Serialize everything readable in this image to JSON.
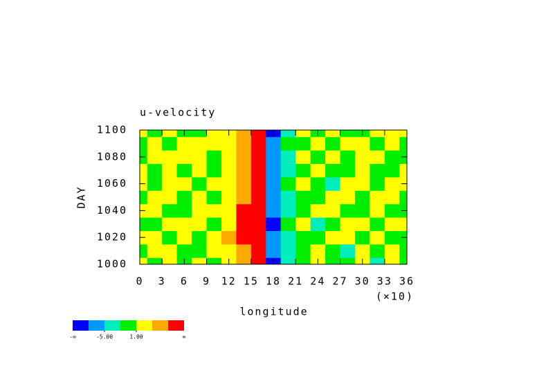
{
  "chart_data": {
    "type": "contour",
    "title": "u-velocity",
    "x_label": "longitude",
    "x_multiplier": "(×10)",
    "y_label": "DAY",
    "x": [
      0,
      2,
      4,
      6,
      8,
      10,
      12,
      14,
      16,
      18,
      20,
      22,
      24,
      26,
      28,
      30,
      32,
      34,
      36
    ],
    "y": [
      1000,
      1010,
      1020,
      1030,
      1040,
      1050,
      1060,
      1070,
      1080,
      1090,
      1100
    ],
    "z": [
      [
        2,
        0,
        3,
        -1,
        1,
        0,
        2,
        5,
        9,
        -9,
        -3,
        -1,
        1,
        -2,
        0,
        2,
        -4,
        1,
        -1
      ],
      [
        -2,
        1,
        2,
        0,
        -1,
        3,
        1,
        6,
        10,
        -8,
        -4,
        0,
        2,
        -1,
        -3,
        1,
        0,
        3,
        -2
      ],
      [
        1,
        3,
        -1,
        2,
        0,
        1,
        4,
        8,
        11,
        -7,
        -3,
        -1,
        0,
        2,
        1,
        -2,
        1,
        -1,
        0
      ],
      [
        0,
        -1,
        2,
        3,
        1,
        -2,
        2,
        7,
        10,
        -9,
        -2,
        1,
        -3,
        0,
        3,
        1,
        -1,
        2,
        1
      ],
      [
        3,
        1,
        0,
        -2,
        2,
        1,
        3,
        8,
        9,
        -8,
        -4,
        -1,
        2,
        1,
        -1,
        0,
        2,
        0,
        -1
      ],
      [
        -1,
        2,
        1,
        0,
        3,
        0,
        2,
        5,
        8,
        -7,
        -3,
        0,
        -2,
        1,
        2,
        -1,
        1,
        3,
        0
      ],
      [
        1,
        0,
        3,
        2,
        -1,
        3,
        1,
        6,
        9,
        -6,
        -2,
        1,
        0,
        -3,
        1,
        2,
        -2,
        1,
        2
      ],
      [
        2,
        -2,
        1,
        0,
        2,
        0,
        3,
        5,
        8,
        -7,
        -4,
        -1,
        1,
        0,
        -1,
        3,
        0,
        -1,
        1
      ],
      [
        0,
        1,
        2,
        3,
        1,
        -1,
        1,
        6,
        9,
        -8,
        -3,
        2,
        -1,
        1,
        0,
        2,
        1,
        0,
        -2
      ],
      [
        -1,
        2,
        0,
        1,
        2,
        1,
        2,
        5,
        10,
        -7,
        -2,
        0,
        1,
        -2,
        3,
        1,
        -1,
        2,
        0
      ],
      [
        1,
        0,
        2,
        -1,
        0,
        2,
        1,
        6,
        9,
        -9,
        -3,
        1,
        0,
        1,
        -1,
        0,
        3,
        1,
        2
      ]
    ],
    "xlim": [
      0,
      36
    ],
    "xticks": [
      0,
      3,
      6,
      9,
      12,
      15,
      18,
      21,
      24,
      27,
      30,
      33,
      36
    ],
    "ylim": [
      1000,
      1100
    ],
    "yticks": [
      1000,
      1020,
      1040,
      1060,
      1080,
      1100
    ],
    "colorbar": {
      "colors": [
        "#0000ff",
        "#0099ff",
        "#00eebb",
        "#00ee00",
        "#ffff00",
        "#ffaa00",
        "#ff0000"
      ],
      "levels": [
        -8,
        -5,
        -2,
        1,
        4,
        7
      ],
      "ticks": [
        {
          "value": -5,
          "label": "-5.00"
        },
        {
          "value": 1,
          "label": "1.00"
        }
      ],
      "low_label": "-∞",
      "high_label": "∞"
    }
  }
}
